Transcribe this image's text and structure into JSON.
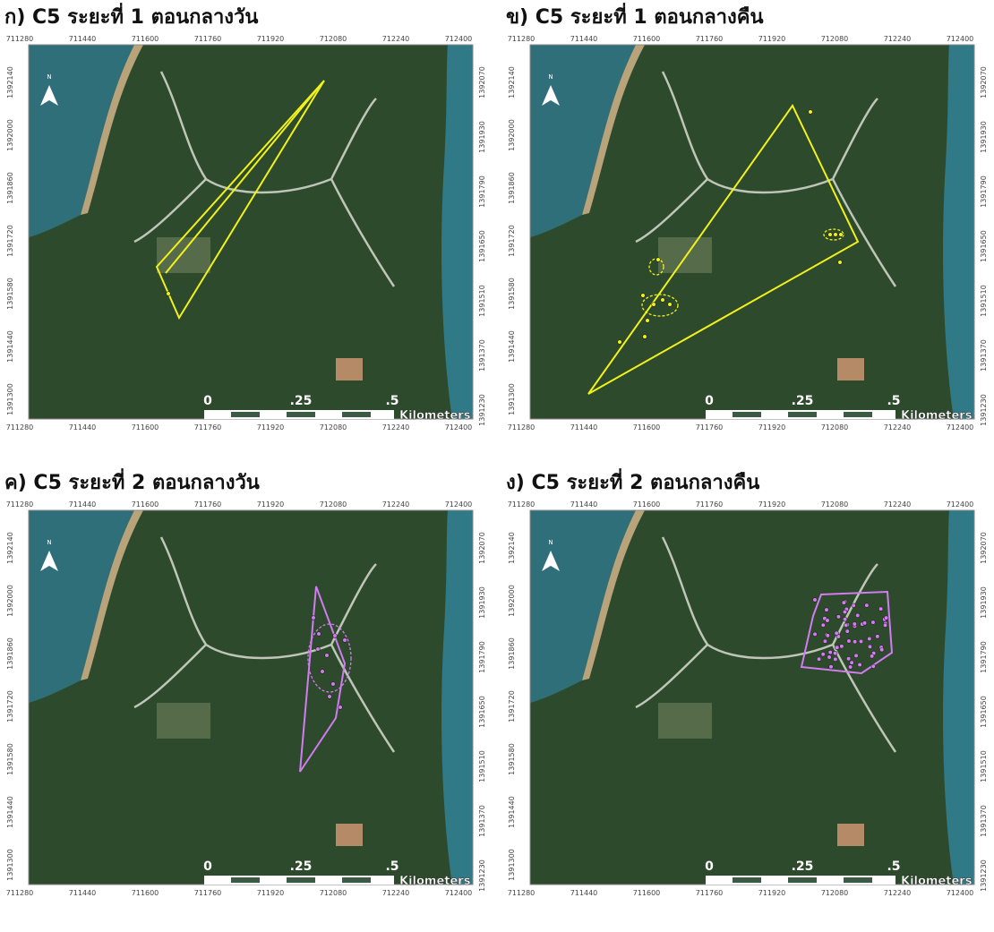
{
  "panels": [
    {
      "title": "ก) C5 ระยะที่ 1 ตอนกลางวัน"
    },
    {
      "title": "ข) C5 ระยะที่ 1 ตอนกลางคืน"
    },
    {
      "title": "ค) C5 ระยะที่ 2 ตอนกลางวัน"
    },
    {
      "title": "ง) C5 ระยะที่ 2 ตอนกลางคืน"
    }
  ],
  "axes": {
    "x_ticks": [
      711280,
      711440,
      711600,
      711760,
      711920,
      712080,
      712240,
      712400
    ],
    "y_ticks_left": [
      1392140,
      1392000,
      1391860,
      1391720,
      1391580,
      1391440,
      1391300
    ],
    "y_ticks_right": [
      1392070,
      1391930,
      1391790,
      1391650,
      1391510,
      1391370,
      1391230
    ]
  },
  "scale_bar": {
    "labels": [
      "0",
      ".25",
      ".5"
    ],
    "unit": "Kilometers"
  },
  "north_label": "N"
}
